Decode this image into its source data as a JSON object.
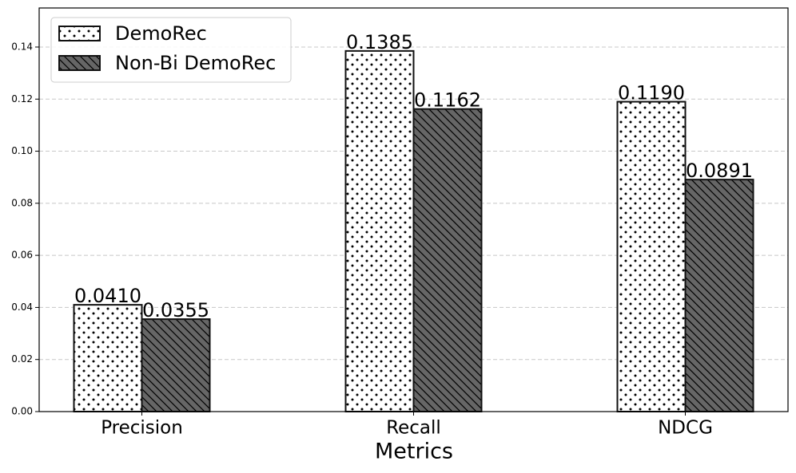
{
  "chart_data": {
    "type": "bar",
    "xlabel": "Metrics",
    "categories": [
      "Precision",
      "Recall",
      "NDCG"
    ],
    "series": [
      {
        "name": "DemoRec",
        "color": "#ffffff",
        "hatch": "dots",
        "values": [
          0.041,
          0.1385,
          0.119
        ],
        "value_labels": [
          "0.0410",
          "0.1385",
          "0.1190"
        ]
      },
      {
        "name": "Non-Bi DemoRec",
        "color": "#666666",
        "hatch": "diagonal",
        "values": [
          0.0355,
          0.1162,
          0.0891
        ],
        "value_labels": [
          "0.0355",
          "0.1162",
          "0.0891"
        ]
      }
    ],
    "ylim": [
      0,
      0.155
    ],
    "yticks": [
      {
        "value": 0,
        "label": "0.00"
      },
      {
        "value": 0.02,
        "label": "0.02"
      },
      {
        "value": 0.04,
        "label": "0.04"
      },
      {
        "value": 0.06,
        "label": "0.06"
      },
      {
        "value": 0.08,
        "label": "0.08"
      },
      {
        "value": 0.1,
        "label": "0.10"
      },
      {
        "value": 0.12,
        "label": "0.12"
      },
      {
        "value": 0.14,
        "label": "0.14"
      }
    ],
    "grid": true,
    "legend": "upper left"
  }
}
